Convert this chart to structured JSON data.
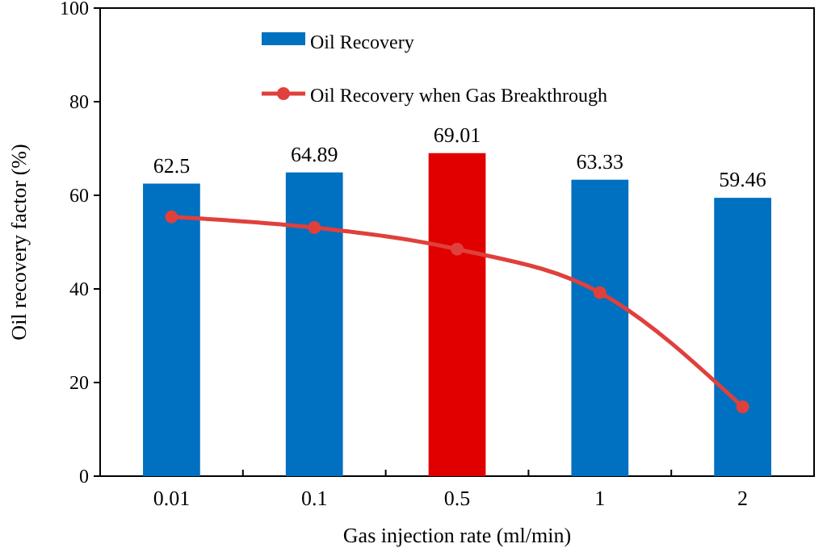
{
  "chart_data": {
    "type": "bar",
    "xlabel": "Gas injection rate (ml/min)",
    "ylabel": "Oil recovery factor  (%)",
    "categories": [
      "0.01",
      "0.1",
      "0.5",
      "1",
      "2"
    ],
    "ylim": [
      0,
      100
    ],
    "yticks": [
      0,
      20,
      40,
      60,
      80,
      100
    ],
    "grid": false,
    "legend": "top",
    "series": [
      {
        "name": "Oil Recovery",
        "color": "#0070c0",
        "colors": [
          "#0070c0",
          "#0070c0",
          "#e00000",
          "#0070c0",
          "#0070c0"
        ],
        "values": [
          62.5,
          64.89,
          69.01,
          63.33,
          59.46
        ],
        "value_labels": [
          "62.5",
          "64.89",
          "69.01",
          "63.33",
          "59.46"
        ]
      },
      {
        "name": "Oil Recovery when Gas Breakthrough",
        "type": "line",
        "color": "#e0403c",
        "marker": "circle",
        "values": [
          55.4,
          53.1,
          48.5,
          39.2,
          14.8
        ]
      }
    ]
  }
}
